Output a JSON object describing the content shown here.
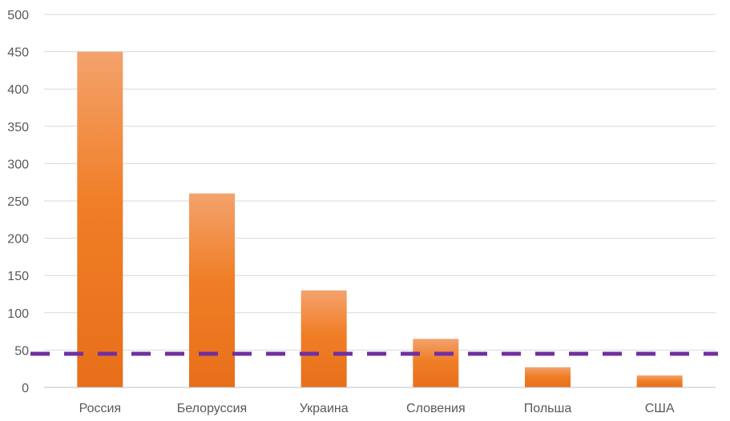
{
  "chart_data": {
    "type": "bar",
    "categories": [
      "Россия",
      "Белоруссия",
      "Украина",
      "Словения",
      "Польша",
      "США"
    ],
    "values": [
      450,
      260,
      130,
      65,
      27,
      16
    ],
    "ylim": [
      0,
      500
    ],
    "yticks": [
      0,
      50,
      100,
      150,
      200,
      250,
      300,
      350,
      400,
      450,
      500
    ],
    "grid": true,
    "reference_line": {
      "value": 45,
      "style": "dashed",
      "color": "#7030A0"
    },
    "colors": {
      "bar_top": "#F4A26D",
      "bar_mid": "#F07E26",
      "bar_bottom": "#E86F1A",
      "grid": "#D9D9D9",
      "axis": "#BFBFBF",
      "text": "#595959"
    }
  }
}
